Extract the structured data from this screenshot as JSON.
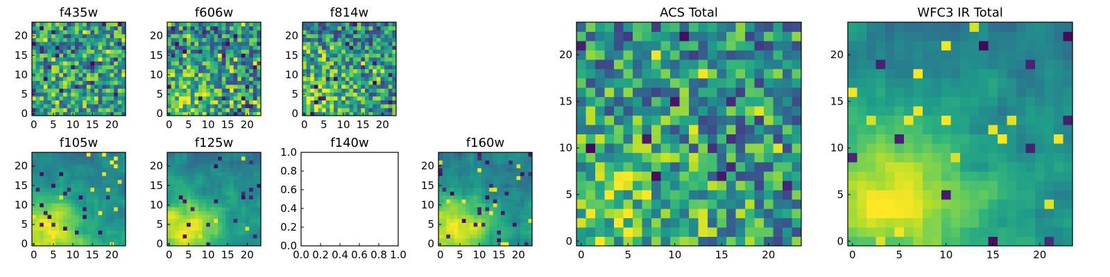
{
  "chart_data": [
    {
      "type": "heatmap",
      "title": "f435w",
      "colormap": "viridis",
      "grid": false,
      "size": [
        24,
        24
      ],
      "origin": "lower",
      "xticks": [
        0,
        5,
        10,
        15,
        20
      ],
      "yticks": [
        0,
        5,
        10,
        15,
        20
      ],
      "gradient": "weak",
      "seed": 11
    },
    {
      "type": "heatmap",
      "title": "f606w",
      "colormap": "viridis",
      "grid": false,
      "size": [
        24,
        24
      ],
      "origin": "lower",
      "xticks": [
        0,
        5,
        10,
        15,
        20
      ],
      "yticks": [
        0,
        5,
        10,
        15,
        20
      ],
      "gradient": "moderate",
      "seed": 23
    },
    {
      "type": "heatmap",
      "title": "f814w",
      "colormap": "viridis",
      "grid": false,
      "size": [
        24,
        24
      ],
      "origin": "lower",
      "xticks": [
        0,
        5,
        10,
        15,
        20
      ],
      "yticks": [
        0,
        5,
        10,
        15,
        20
      ],
      "gradient": "moderate",
      "seed": 37
    },
    {
      "type": "heatmap",
      "title": "f105w",
      "colormap": "viridis",
      "grid": false,
      "size": [
        24,
        24
      ],
      "origin": "lower",
      "xticks": [
        0,
        5,
        10,
        15,
        20
      ],
      "yticks": [
        0,
        5,
        10,
        15,
        20
      ],
      "gradient": "strong",
      "seed": 41
    },
    {
      "type": "heatmap",
      "title": "f125w",
      "colormap": "viridis",
      "grid": false,
      "size": [
        24,
        24
      ],
      "origin": "lower",
      "xticks": [
        0,
        5,
        10,
        15,
        20
      ],
      "yticks": [
        0,
        5,
        10,
        15,
        20
      ],
      "gradient": "strong",
      "seed": 53
    },
    {
      "type": "empty",
      "title": "f140w",
      "xlim": [
        0,
        1
      ],
      "ylim": [
        0,
        1
      ],
      "xtick_labels": [
        "0.0",
        "0.2",
        "0.4",
        "0.6",
        "0.8",
        "1.0"
      ],
      "ytick_labels": [
        "0.0",
        "0.2",
        "0.4",
        "0.6",
        "0.8",
        "1.0"
      ]
    },
    {
      "type": "heatmap",
      "title": "f160w",
      "colormap": "viridis",
      "grid": false,
      "size": [
        24,
        24
      ],
      "origin": "lower",
      "xticks": [
        0,
        5,
        10,
        15,
        20
      ],
      "yticks": [
        0,
        5,
        10,
        15,
        20
      ],
      "gradient": "strong",
      "seed": 67
    },
    {
      "type": "heatmap",
      "title": "ACS Total",
      "colormap": "viridis",
      "grid": false,
      "size": [
        24,
        24
      ],
      "origin": "lower",
      "xticks": [
        0,
        5,
        10,
        15,
        20
      ],
      "yticks": [
        0,
        5,
        10,
        15,
        20
      ],
      "gradient": "moderate",
      "seed": 79
    },
    {
      "type": "heatmap",
      "title": "WFC3 IR Total",
      "colormap": "viridis",
      "grid": false,
      "size": [
        24,
        24
      ],
      "origin": "lower",
      "xticks": [
        0,
        5,
        10,
        15,
        20
      ],
      "yticks": [
        0,
        5,
        10,
        15,
        20
      ],
      "gradient": "strong",
      "seed": 97
    }
  ]
}
